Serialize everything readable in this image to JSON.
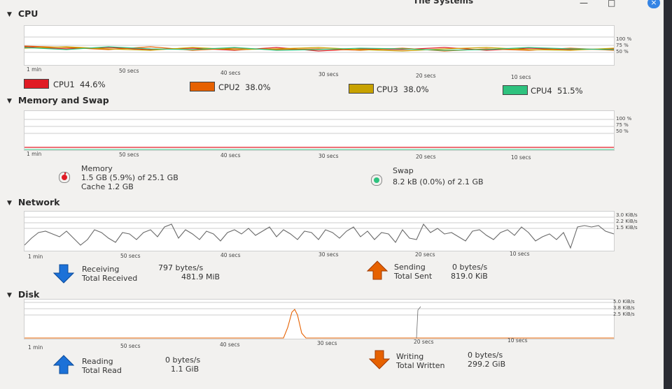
{
  "window": {
    "title": "The Systems",
    "minimize": "—",
    "maximize": "□",
    "close": "×"
  },
  "time_labels": [
    "1 min",
    "50 secs",
    "40 secs",
    "30 secs",
    "20 secs",
    "10 secs"
  ],
  "cpu": {
    "title": "CPU",
    "scale": [
      "100 %",
      "75 %",
      "50 %"
    ],
    "cores": [
      {
        "label": "CPU1",
        "value": "44.6%",
        "color": "#e01b24"
      },
      {
        "label": "CPU2",
        "value": "38.0%",
        "color": "#e66100"
      },
      {
        "label": "CPU3",
        "value": "38.0%",
        "color": "#c8a200"
      },
      {
        "label": "CPU4",
        "value": "51.5%",
        "color": "#2ec27e"
      }
    ]
  },
  "memory": {
    "title": "Memory and Swap",
    "scale": [
      "100 %",
      "75 %",
      "50 %"
    ],
    "mem_label": "Memory",
    "mem_usage": "1.5 GB (5.9%) of 25.1 GB",
    "mem_cache": "Cache 1.2 GB",
    "swap_label": "Swap",
    "swap_usage": "8.2 kB (0.0%) of 2.1 GB",
    "mem_color": "#e01b24",
    "swap_color": "#2ec27e"
  },
  "network": {
    "title": "Network",
    "scale": [
      "3.0 KiB/s",
      "2.2 KiB/s",
      "1.5 KiB/s"
    ],
    "recv_label": "Receiving",
    "recv_rate": "797 bytes/s",
    "total_recv_label": "Total Received",
    "total_recv": "481.9 MiB",
    "send_label": "Sending",
    "send_rate": "0 bytes/s",
    "total_sent_label": "Total Sent",
    "total_sent": "819.0 KiB"
  },
  "disk": {
    "title": "Disk",
    "scale": [
      "5.0 KiB/s",
      "3.8 KiB/s",
      "2.5 KiB/s"
    ],
    "read_label": "Reading",
    "read_rate": "0 bytes/s",
    "total_read_label": "Total Read",
    "total_read": "1.1 GiB",
    "write_label": "Writing",
    "write_rate": "0 bytes/s",
    "total_written_label": "Total Written",
    "total_written": "299.2 GiB"
  },
  "icons": {
    "collapse": "chevron-down-icon",
    "receive": "arrow-down-icon",
    "send": "arrow-up-icon",
    "read": "arrow-up-icon",
    "write": "arrow-down-icon"
  }
}
